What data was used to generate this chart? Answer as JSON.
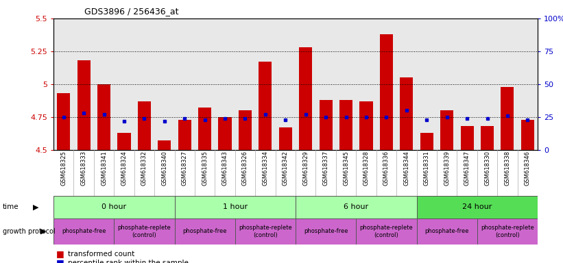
{
  "title": "GDS3896 / 256436_at",
  "samples": [
    "GSM618325",
    "GSM618333",
    "GSM618341",
    "GSM618324",
    "GSM618332",
    "GSM618340",
    "GSM618327",
    "GSM618335",
    "GSM618343",
    "GSM618326",
    "GSM618334",
    "GSM618342",
    "GSM618329",
    "GSM618337",
    "GSM618345",
    "GSM618328",
    "GSM618336",
    "GSM618344",
    "GSM618331",
    "GSM618339",
    "GSM618347",
    "GSM618330",
    "GSM618338",
    "GSM618346"
  ],
  "bar_heights": [
    4.93,
    5.18,
    5.0,
    4.63,
    4.87,
    4.57,
    4.73,
    4.82,
    4.75,
    4.8,
    5.17,
    4.67,
    5.28,
    4.88,
    4.88,
    4.87,
    5.38,
    5.05,
    4.63,
    4.8,
    4.68,
    4.68,
    4.98,
    4.73
  ],
  "percentile_ranks": [
    25,
    28,
    27,
    22,
    24,
    22,
    24,
    23,
    24,
    24,
    27,
    23,
    27,
    25,
    25,
    25,
    25,
    30,
    23,
    25,
    24,
    24,
    26,
    23
  ],
  "ylim_left": [
    4.5,
    5.5
  ],
  "ylim_right": [
    0,
    100
  ],
  "yticks_left": [
    4.5,
    4.75,
    5.0,
    5.25,
    5.5
  ],
  "ytick_labels_left": [
    "4.5",
    "4.75",
    "5",
    "5.25",
    "5.5"
  ],
  "yticks_right": [
    0,
    25,
    50,
    75,
    100
  ],
  "ytick_labels_right": [
    "0",
    "25",
    "50",
    "75",
    "100%"
  ],
  "hlines": [
    4.75,
    5.0,
    5.25
  ],
  "bar_color": "#cc0000",
  "dot_color": "#0000cc",
  "bar_bottom": 4.5,
  "plot_bg_color": "#e8e8e8",
  "left_axis_color": "#cc0000",
  "right_axis_color": "#0000cc",
  "time_groups": [
    {
      "label": "0 hour",
      "cols": [
        0,
        6
      ],
      "color": "#aaffaa"
    },
    {
      "label": "1 hour",
      "cols": [
        6,
        12
      ],
      "color": "#aaffaa"
    },
    {
      "label": "6 hour",
      "cols": [
        12,
        18
      ],
      "color": "#aaffaa"
    },
    {
      "label": "24 hour",
      "cols": [
        18,
        24
      ],
      "color": "#55dd55"
    }
  ],
  "protocol_groups": [
    {
      "label": "phosphate-free",
      "cols": [
        0,
        3
      ],
      "color": "#cc66cc"
    },
    {
      "label": "phosphate-replete\n(control)",
      "cols": [
        3,
        6
      ],
      "color": "#cc66cc"
    },
    {
      "label": "phosphate-free",
      "cols": [
        6,
        9
      ],
      "color": "#cc66cc"
    },
    {
      "label": "phosphate-replete\n(control)",
      "cols": [
        9,
        12
      ],
      "color": "#cc66cc"
    },
    {
      "label": "phosphate-free",
      "cols": [
        12,
        15
      ],
      "color": "#cc66cc"
    },
    {
      "label": "phosphate-replete\n(control)",
      "cols": [
        15,
        18
      ],
      "color": "#cc66cc"
    },
    {
      "label": "phosphate-free",
      "cols": [
        18,
        21
      ],
      "color": "#cc66cc"
    },
    {
      "label": "phosphate-replete\n(control)",
      "cols": [
        21,
        24
      ],
      "color": "#cc66cc"
    }
  ]
}
